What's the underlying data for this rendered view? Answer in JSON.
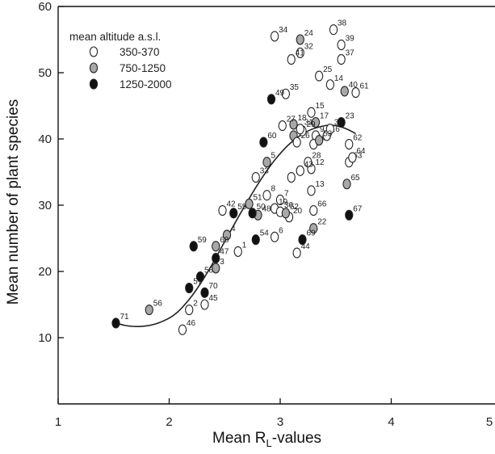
{
  "chart_data": {
    "type": "scatter",
    "xlabel_main": "Mean R",
    "xlabel_sub": "L",
    "xlabel_tail": "-values",
    "ylabel": "Mean number of plant species",
    "xlim": [
      1,
      5
    ],
    "ylim": [
      0,
      60
    ],
    "x_ticks": [
      "1",
      "2",
      "3",
      "4",
      "5"
    ],
    "y_ticks": [
      "10",
      "20",
      "30",
      "40",
      "50",
      "60"
    ],
    "grid": false,
    "legend_title": "mean altitude a.s.l.",
    "legend_placement": "top-left",
    "groups": [
      {
        "label": "350-370",
        "color": "#ffffff"
      },
      {
        "label": "750-1250",
        "color": "#a8a8a8"
      },
      {
        "label": "1250-2000",
        "color": "#111111"
      }
    ],
    "points": [
      {
        "id": "1",
        "x": 2.62,
        "y": 23,
        "group": 0
      },
      {
        "id": "2",
        "x": 2.18,
        "y": 14.2,
        "group": 0
      },
      {
        "id": "3",
        "x": 2.42,
        "y": 20.5,
        "group": 1
      },
      {
        "id": "4",
        "x": 2.52,
        "y": 25.5,
        "group": 1
      },
      {
        "id": "5",
        "x": 2.88,
        "y": 36.5,
        "group": 1
      },
      {
        "id": "6",
        "x": 2.95,
        "y": 25.2,
        "group": 0
      },
      {
        "id": "7",
        "x": 3.0,
        "y": 30.8,
        "group": 0
      },
      {
        "id": "8",
        "x": 2.88,
        "y": 31.5,
        "group": 0
      },
      {
        "id": "9",
        "x": 3.32,
        "y": 40.5,
        "group": 0
      },
      {
        "id": "10",
        "x": 3.3,
        "y": 39.2,
        "group": 0
      },
      {
        "id": "11",
        "x": 3.1,
        "y": 34.2,
        "group": 0
      },
      {
        "id": "12",
        "x": 3.28,
        "y": 35.5,
        "group": 0
      },
      {
        "id": "13",
        "x": 3.28,
        "y": 32.2,
        "group": 0
      },
      {
        "id": "14",
        "x": 3.45,
        "y": 48.2,
        "group": 0
      },
      {
        "id": "15",
        "x": 3.28,
        "y": 44,
        "group": 0
      },
      {
        "id": "16",
        "x": 3.42,
        "y": 40.5,
        "group": 0
      },
      {
        "id": "17",
        "x": 3.32,
        "y": 42.5,
        "group": 1
      },
      {
        "id": "18",
        "x": 3.12,
        "y": 42.2,
        "group": 1
      },
      {
        "id": "19",
        "x": 2.95,
        "y": 29.5,
        "group": 0
      },
      {
        "id": "20",
        "x": 3.08,
        "y": 28.2,
        "group": 0
      },
      {
        "id": "21",
        "x": 3.12,
        "y": 40.5,
        "group": 1
      },
      {
        "id": "22",
        "x": 3.3,
        "y": 26.5,
        "group": 1
      },
      {
        "id": "23",
        "x": 3.55,
        "y": 42.5,
        "group": 2
      },
      {
        "id": "24",
        "x": 3.18,
        "y": 55,
        "group": 1
      },
      {
        "id": "25",
        "x": 3.35,
        "y": 49.5,
        "group": 0
      },
      {
        "id": "26",
        "x": 3.15,
        "y": 39.5,
        "group": 0
      },
      {
        "id": "27",
        "x": 3.02,
        "y": 42,
        "group": 0
      },
      {
        "id": "28",
        "x": 3.25,
        "y": 36.5,
        "group": 0
      },
      {
        "id": "29",
        "x": 3.2,
        "y": 41.2,
        "group": 0
      },
      {
        "id": "30",
        "x": 3.0,
        "y": 29,
        "group": 0
      },
      {
        "id": "31",
        "x": 3.18,
        "y": 41.5,
        "group": 0
      },
      {
        "id": "32",
        "x": 3.18,
        "y": 53,
        "group": 0
      },
      {
        "id": "33",
        "x": 2.78,
        "y": 34.2,
        "group": 0
      },
      {
        "id": "34",
        "x": 2.95,
        "y": 55.5,
        "group": 0
      },
      {
        "id": "35",
        "x": 3.05,
        "y": 46.8,
        "group": 0
      },
      {
        "id": "36",
        "x": 3.45,
        "y": 41.5,
        "group": 0
      },
      {
        "id": "37",
        "x": 3.55,
        "y": 52,
        "group": 0
      },
      {
        "id": "38",
        "x": 3.48,
        "y": 56.5,
        "group": 0
      },
      {
        "id": "39",
        "x": 3.55,
        "y": 54.2,
        "group": 0
      },
      {
        "id": "40",
        "x": 3.58,
        "y": 47.2,
        "group": 1
      },
      {
        "id": "41",
        "x": 3.1,
        "y": 52,
        "group": 0
      },
      {
        "id": "42",
        "x": 2.48,
        "y": 29.2,
        "group": 0
      },
      {
        "id": "43",
        "x": 3.18,
        "y": 35.2,
        "group": 0
      },
      {
        "id": "44",
        "x": 3.15,
        "y": 22.8,
        "group": 0
      },
      {
        "id": "45",
        "x": 2.32,
        "y": 15,
        "group": 0
      },
      {
        "id": "46",
        "x": 2.12,
        "y": 11.2,
        "group": 0
      },
      {
        "id": "47",
        "x": 2.42,
        "y": 22,
        "group": 2
      },
      {
        "id": "48",
        "x": 2.8,
        "y": 28.5,
        "group": 1
      },
      {
        "id": "49",
        "x": 2.92,
        "y": 46,
        "group": 2
      },
      {
        "id": "50",
        "x": 2.75,
        "y": 28.8,
        "group": 2
      },
      {
        "id": "51",
        "x": 2.72,
        "y": 30.2,
        "group": 1
      },
      {
        "id": "52",
        "x": 3.05,
        "y": 28.8,
        "group": 1
      },
      {
        "id": "53",
        "x": 3.35,
        "y": 39.8,
        "group": 1
      },
      {
        "id": "54",
        "x": 2.78,
        "y": 24.8,
        "group": 2
      },
      {
        "id": "55",
        "x": 2.58,
        "y": 28.8,
        "group": 2
      },
      {
        "id": "56",
        "x": 1.82,
        "y": 14.2,
        "group": 1
      },
      {
        "id": "57",
        "x": 2.18,
        "y": 17.5,
        "group": 2
      },
      {
        "id": "58",
        "x": 2.28,
        "y": 19.2,
        "group": 2
      },
      {
        "id": "59",
        "x": 2.22,
        "y": 23.8,
        "group": 2
      },
      {
        "id": "60",
        "x": 2.85,
        "y": 39.5,
        "group": 2
      },
      {
        "id": "61",
        "x": 3.68,
        "y": 47,
        "group": 0
      },
      {
        "id": "62",
        "x": 3.62,
        "y": 39.2,
        "group": 0
      },
      {
        "id": "63",
        "x": 3.62,
        "y": 36.5,
        "group": 0
      },
      {
        "id": "64",
        "x": 3.65,
        "y": 37.2,
        "group": 0
      },
      {
        "id": "65",
        "x": 3.6,
        "y": 33.2,
        "group": 1
      },
      {
        "id": "66",
        "x": 3.3,
        "y": 29.2,
        "group": 0
      },
      {
        "id": "67",
        "x": 3.62,
        "y": 28.5,
        "group": 2
      },
      {
        "id": "68",
        "x": 2.42,
        "y": 23.8,
        "group": 1
      },
      {
        "id": "69",
        "x": 3.2,
        "y": 24.8,
        "group": 2
      },
      {
        "id": "70",
        "x": 2.32,
        "y": 16.8,
        "group": 2
      },
      {
        "id": "71",
        "x": 1.52,
        "y": 12.2,
        "group": 2
      }
    ],
    "fit_curve": [
      [
        1.52,
        12.2
      ],
      [
        1.62,
        11.8
      ],
      [
        1.75,
        11.7
      ],
      [
        1.9,
        12.2
      ],
      [
        2.05,
        13.5
      ],
      [
        2.2,
        16.2
      ],
      [
        2.35,
        20
      ],
      [
        2.5,
        24.5
      ],
      [
        2.65,
        29
      ],
      [
        2.8,
        33.2
      ],
      [
        2.95,
        36.8
      ],
      [
        3.1,
        39.5
      ],
      [
        3.25,
        41.2
      ],
      [
        3.4,
        42
      ],
      [
        3.5,
        42
      ],
      [
        3.6,
        41.5
      ],
      [
        3.68,
        40.8
      ]
    ]
  }
}
